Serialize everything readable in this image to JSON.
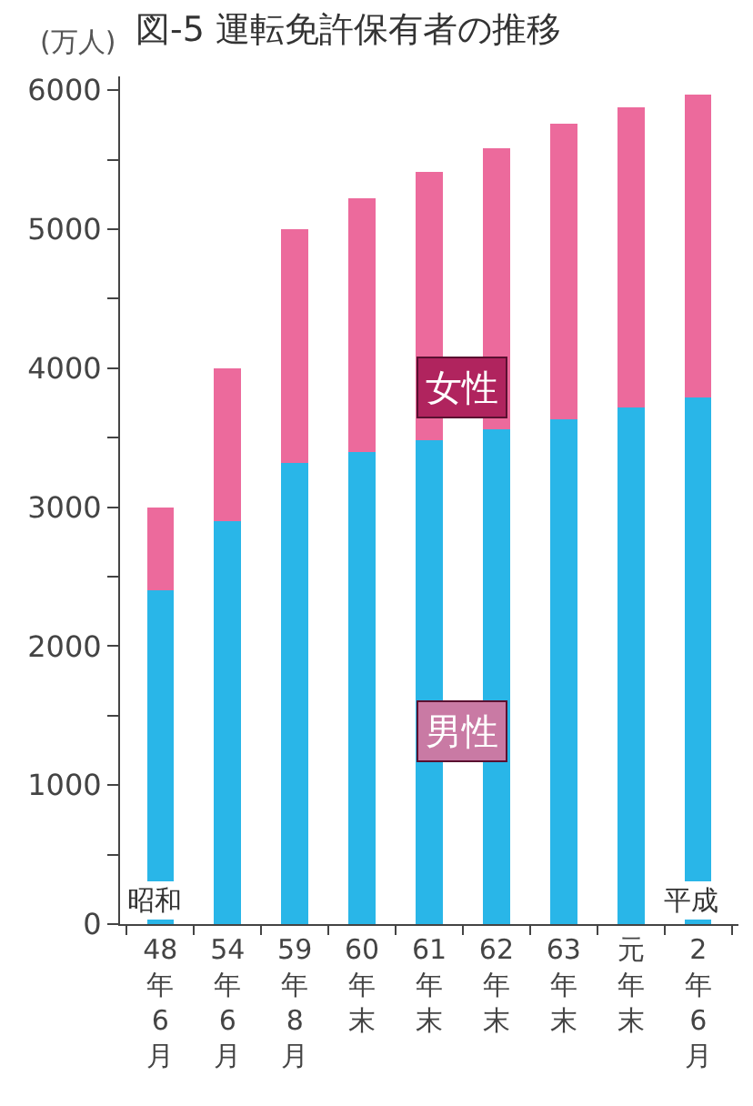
{
  "chart_data": {
    "type": "bar",
    "stacked": true,
    "title": "図-5 運転免許保有者の推移",
    "ylabel": "(万人)",
    "categories": [
      "48年6月",
      "54年6月",
      "59年8月",
      "60年末",
      "61年末",
      "62年末",
      "63年末",
      "元年末",
      "2年6月"
    ],
    "series": [
      {
        "name": "男性",
        "color": "#29b6e8",
        "values": [
          2400,
          2900,
          3320,
          3400,
          3480,
          3560,
          3630,
          3720,
          3790
        ]
      },
      {
        "name": "女性",
        "color": "#ec6a9c",
        "values": [
          600,
          1100,
          1680,
          1820,
          1930,
          2020,
          2130,
          2160,
          2180
        ]
      }
    ],
    "annotations": [
      "昭和",
      "平成"
    ],
    "ylim": [
      0,
      6100
    ],
    "yticks": [
      0,
      {
        "value": 500,
        "label": null
      },
      1000,
      {
        "value": 1500,
        "label": null
      },
      2000,
      {
        "value": 2500,
        "label": null
      },
      3000,
      {
        "value": 3500,
        "label": null
      },
      4000,
      {
        "value": 4500,
        "label": null
      },
      5000,
      {
        "value": 5500,
        "label": null
      },
      6000
    ],
    "legend": false
  }
}
